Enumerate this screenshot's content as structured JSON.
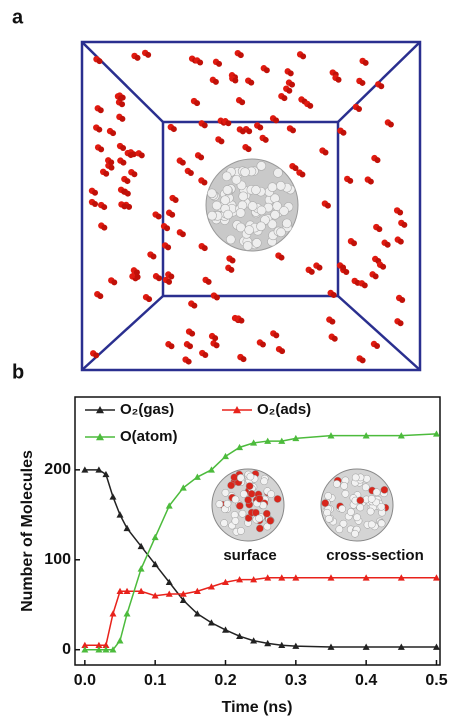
{
  "panel_labels": [
    "a",
    "b"
  ],
  "chart_data": {
    "type": "line",
    "x_label": "Time (ns)",
    "y_label": "Number of Molecules",
    "x": [
      0,
      0.02,
      0.03,
      0.04,
      0.05,
      0.06,
      0.08,
      0.1,
      0.12,
      0.14,
      0.16,
      0.18,
      0.2,
      0.22,
      0.24,
      0.26,
      0.28,
      0.3,
      0.35,
      0.4,
      0.45,
      0.5
    ],
    "series": [
      {
        "name": "O₂(gas)",
        "color": "#222222",
        "values": [
          200,
          200,
          195,
          170,
          150,
          135,
          115,
          95,
          75,
          55,
          40,
          30,
          22,
          15,
          10,
          7,
          5,
          4,
          3,
          3,
          3,
          3
        ]
      },
      {
        "name": "O₂(ads)",
        "color": "#e8221b",
        "values": [
          5,
          5,
          5,
          40,
          65,
          65,
          65,
          60,
          62,
          62,
          65,
          70,
          75,
          78,
          78,
          80,
          80,
          80,
          80,
          80,
          80,
          80
        ]
      },
      {
        "name": "O(atom)",
        "color": "#4cbb3c",
        "values": [
          0,
          0,
          0,
          0,
          10,
          40,
          90,
          125,
          160,
          180,
          192,
          200,
          215,
          225,
          230,
          232,
          232,
          235,
          238,
          238,
          238,
          240
        ]
      }
    ],
    "xlim": [
      -0.014,
      0.505
    ],
    "ylim": [
      -17,
      281
    ],
    "xticks": [
      {
        "value": 0,
        "label": "0.0"
      },
      0.1,
      0.2,
      0.3,
      0.4,
      0.5
    ],
    "yticks": [
      0,
      100,
      200
    ],
    "inset_labels": [
      "surface",
      "cross-section"
    ]
  }
}
